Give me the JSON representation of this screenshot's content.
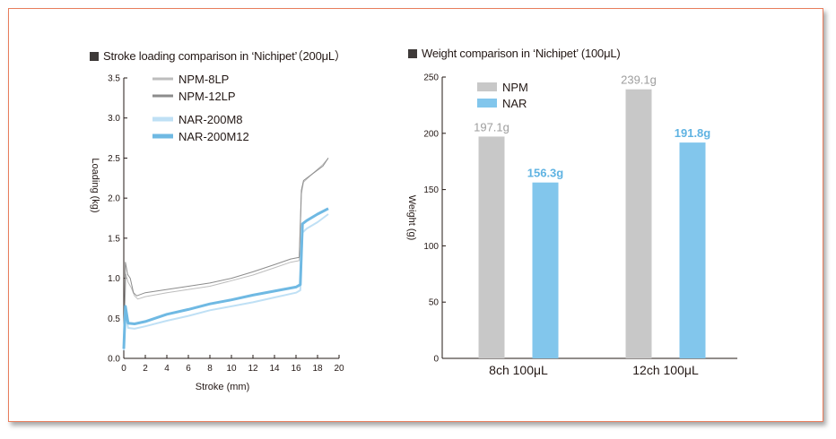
{
  "colors": {
    "frame_border": "#e87d5c",
    "npm_8lp": "#bdbdbd",
    "npm_12lp": "#8c8c8c",
    "nar_200m8": "#bfe0f5",
    "nar_200m12": "#6fb9e3",
    "npm_bar": "#c8c8c8",
    "nar_bar": "#82c6ec",
    "npm_label": "#9e9e9e",
    "nar_label": "#5fb3e2"
  },
  "chart_data": [
    {
      "type": "line",
      "title": "Stroke loading comparison in ‘Nichipet’（200μL）",
      "xlabel": "Stroke (mm)",
      "ylabel": "Loading (kg)",
      "xlim": [
        0,
        20
      ],
      "ylim": [
        0,
        3.5
      ],
      "xticks": [
        "0",
        "2",
        "4",
        "6",
        "8",
        "10",
        "12",
        "14",
        "16",
        "18",
        "20"
      ],
      "yticks": [
        "0.0",
        "0.5",
        "1.0",
        "1.5",
        "2.0",
        "2.5",
        "3.0",
        "3.5"
      ],
      "grid": false,
      "legend_position": "top",
      "series": [
        {
          "name": "NPM-8LP",
          "color_key": "npm_8lp",
          "x": [
            0,
            0.2,
            0.4,
            0.7,
            1.0,
            1.3,
            2,
            4,
            6,
            8,
            10,
            12,
            14,
            15.5,
            16.3,
            16.5,
            16.7,
            17.5,
            18.5,
            19
          ],
          "y": [
            0.2,
            1.05,
            0.95,
            0.88,
            0.78,
            0.74,
            0.77,
            0.82,
            0.86,
            0.9,
            0.97,
            1.04,
            1.13,
            1.2,
            1.22,
            2.05,
            2.2,
            2.3,
            2.42,
            2.5
          ]
        },
        {
          "name": "NPM-12LP",
          "color_key": "npm_12lp",
          "x": [
            0,
            0.15,
            0.35,
            0.6,
            0.9,
            1.2,
            2,
            4,
            6,
            8,
            10,
            12,
            14,
            15.5,
            16.3,
            16.5,
            16.7,
            17.5,
            18.5,
            19
          ],
          "y": [
            0.25,
            1.2,
            1.05,
            1.0,
            0.82,
            0.78,
            0.82,
            0.86,
            0.9,
            0.94,
            1.0,
            1.08,
            1.17,
            1.24,
            1.26,
            2.1,
            2.22,
            2.3,
            2.4,
            2.5
          ]
        },
        {
          "name": "NAR-200M8",
          "color_key": "nar_200m8",
          "x": [
            0,
            0.15,
            0.4,
            1,
            2,
            4,
            6,
            8,
            10,
            12,
            14,
            16,
            16.4,
            16.6,
            17,
            18,
            19
          ],
          "y": [
            0.1,
            0.58,
            0.38,
            0.37,
            0.4,
            0.47,
            0.53,
            0.6,
            0.65,
            0.7,
            0.76,
            0.82,
            0.85,
            1.57,
            1.62,
            1.7,
            1.8
          ]
        },
        {
          "name": "NAR-200M12",
          "color_key": "nar_200m12",
          "x": [
            0,
            0.15,
            0.4,
            1,
            2,
            4,
            6,
            8,
            10,
            12,
            14,
            16,
            16.4,
            16.6,
            17,
            18,
            19
          ],
          "y": [
            0.12,
            0.65,
            0.44,
            0.43,
            0.46,
            0.55,
            0.61,
            0.68,
            0.73,
            0.79,
            0.84,
            0.89,
            0.92,
            1.68,
            1.72,
            1.8,
            1.87
          ]
        }
      ]
    },
    {
      "type": "bar",
      "title": "Weight comparison in ‘Nichipet’ (100μL)",
      "ylabel": "Weight  (g)",
      "ylim": [
        0,
        250
      ],
      "yticks": [
        "0",
        "50",
        "100",
        "150",
        "200",
        "250"
      ],
      "categories": [
        "8ch 100μL",
        "12ch 100μL"
      ],
      "legend_position": "top-left",
      "series": [
        {
          "name": "NPM",
          "color_key": "npm_bar",
          "values": [
            197.1,
            239.1
          ],
          "labels": [
            "197.1g",
            "239.1g"
          ]
        },
        {
          "name": "NAR",
          "color_key": "nar_bar",
          "values": [
            156.3,
            191.8
          ],
          "labels": [
            "156.3g",
            "191.8g"
          ]
        }
      ]
    }
  ]
}
